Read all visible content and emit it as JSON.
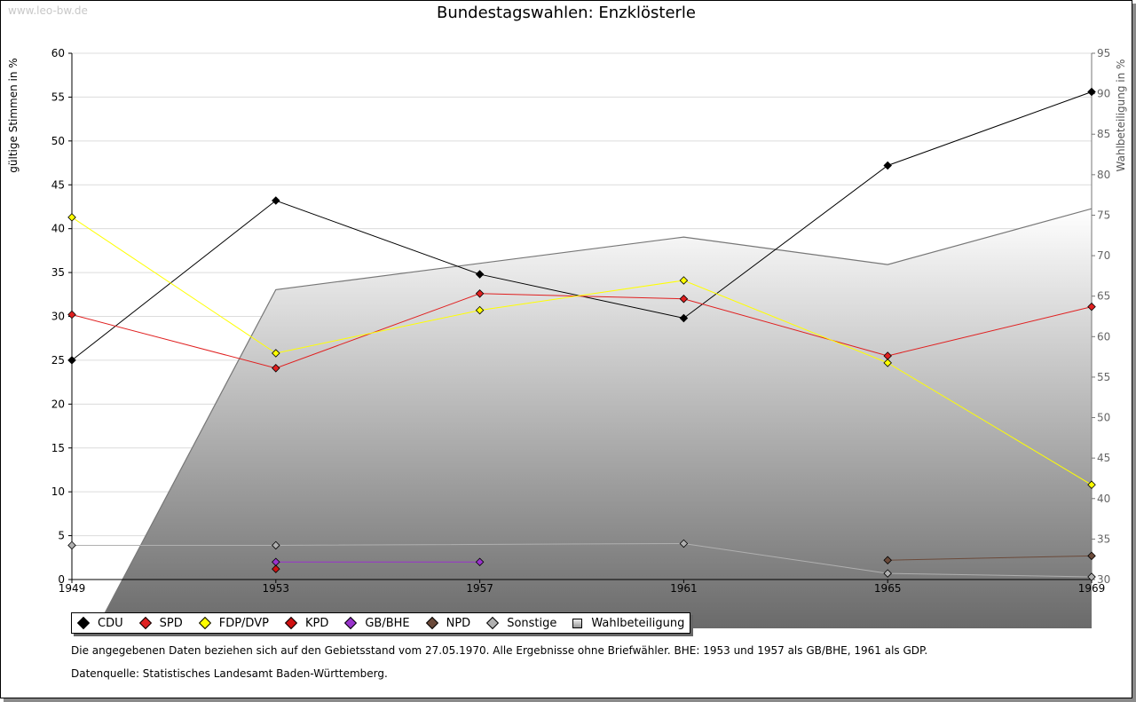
{
  "watermark": "www.leo-bw.de",
  "notes": {
    "line1": "Die angegebenen Daten beziehen sich auf den Gebietsstand vom 27.05.1970. Alle Ergebnisse ohne Briefwähler. BHE: 1953 und 1957 als GB/BHE, 1961 als GDP.",
    "line2": "Datenquelle: Statistisches Landesamt Baden-Württemberg."
  },
  "chart_data": {
    "type": "line",
    "title": "Bundestagswahlen: Enzklösterle",
    "ylabel": "gültige Stimmen in %",
    "y2label": "Wahlbeteiligung in %",
    "x": [
      1949,
      1953,
      1957,
      1961,
      1965,
      1969
    ],
    "x_ticks": [
      "1949",
      "1953",
      "1957",
      "1961",
      "1965",
      "1969"
    ],
    "ylim": [
      0,
      60
    ],
    "y_ticks": [
      "0",
      "5",
      "10",
      "15",
      "20",
      "25",
      "30",
      "35",
      "40",
      "45",
      "50",
      "55",
      "60"
    ],
    "y2lim": [
      30,
      95
    ],
    "y2_ticks": [
      "30",
      "35",
      "40",
      "45",
      "50",
      "55",
      "60",
      "65",
      "70",
      "75",
      "80",
      "85",
      "90",
      "95"
    ],
    "grid": true,
    "legend_position": "bottom",
    "series": [
      {
        "name": "CDU",
        "color": "#000000",
        "values": [
          25.0,
          43.2,
          34.8,
          29.8,
          47.2,
          55.6
        ]
      },
      {
        "name": "SPD",
        "color": "#e02020",
        "values": [
          30.2,
          24.1,
          32.6,
          32.0,
          25.5,
          31.1
        ]
      },
      {
        "name": "FDP/DVP",
        "color": "#ffff00",
        "values": [
          41.3,
          25.8,
          30.7,
          34.1,
          24.7,
          10.8
        ]
      },
      {
        "name": "KPD",
        "color": "#d01010",
        "values": [
          null,
          1.2,
          null,
          null,
          null,
          null
        ]
      },
      {
        "name": "GB/BHE",
        "color": "#9933cc",
        "values": [
          null,
          2.0,
          2.0,
          null,
          null,
          null
        ]
      },
      {
        "name": "NPD",
        "color": "#6b4a3a",
        "values": [
          null,
          null,
          null,
          null,
          2.2,
          2.7
        ]
      },
      {
        "name": "Sonstige",
        "color": "#b0b0b0",
        "values": [
          3.9,
          3.9,
          null,
          4.1,
          0.7,
          0.3
        ]
      },
      {
        "name": "Wahlbeteiligung",
        "color": "#808080",
        "axis": "right",
        "type": "area",
        "values": [
          null,
          65.8,
          null,
          72.3,
          68.9,
          75.8
        ]
      }
    ]
  }
}
